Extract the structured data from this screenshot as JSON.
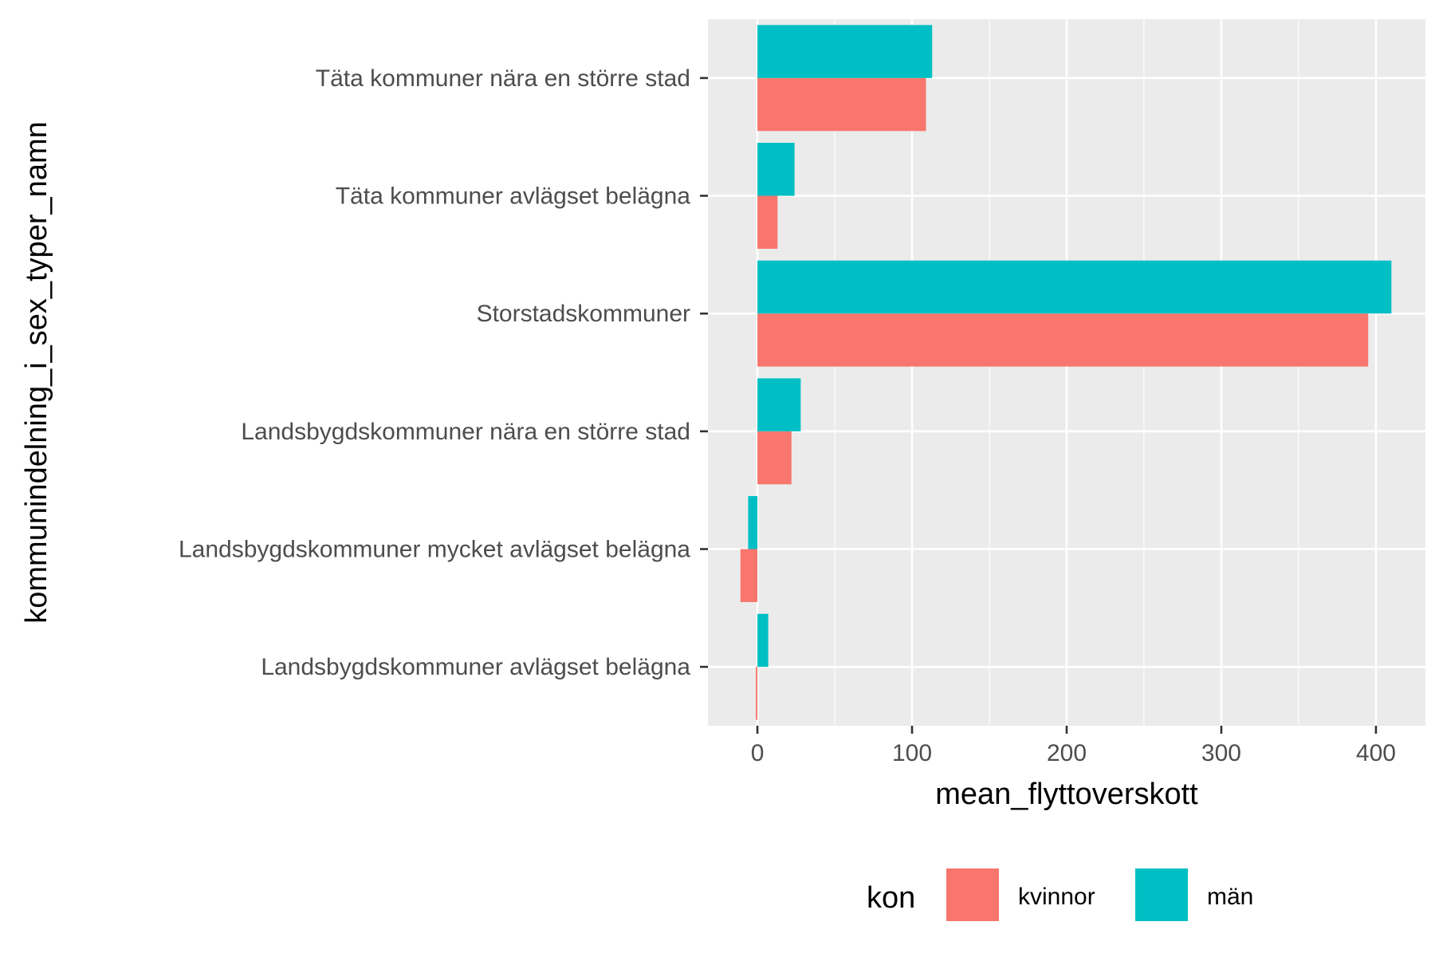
{
  "chart_data": {
    "type": "bar",
    "orientation": "horizontal",
    "xlabel": "mean_flyttoverskott",
    "ylabel": "kommunindelning_i_sex_typer_namn",
    "xlim": [
      -32,
      432
    ],
    "x_ticks": [
      0,
      100,
      200,
      300,
      400
    ],
    "x_minor_ticks": [
      50,
      150,
      250,
      350
    ],
    "grid": true,
    "legend_position": "bottom",
    "legend_title": "kon",
    "categories": [
      "Täta kommuner nära en större stad",
      "Täta kommuner avlägset belägna",
      "Storstadskommuner",
      "Landsbygdskommuner nära en större stad",
      "Landsbygdskommuner mycket avlägset belägna",
      "Landsbygdskommuner avlägset belägna"
    ],
    "series": [
      {
        "name": "kvinnor",
        "color": "#F8766D",
        "values": [
          109,
          13,
          395,
          22,
          -11,
          -1
        ]
      },
      {
        "name": "män",
        "color": "#00BFC4",
        "values": [
          113,
          24,
          410,
          28,
          -6,
          7
        ]
      }
    ],
    "panel_color": "#EBEBEB",
    "grid_color": "#FFFFFF"
  }
}
